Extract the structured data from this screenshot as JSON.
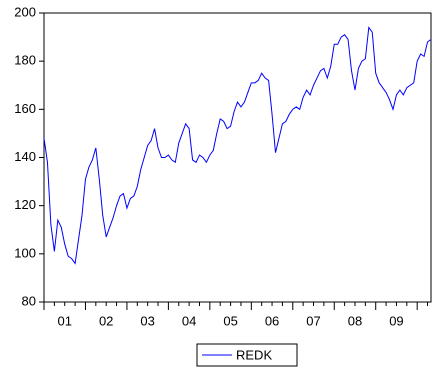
{
  "chart_data": {
    "type": "line",
    "categories": [
      null,
      null,
      null,
      null,
      null,
      null,
      "01",
      null,
      null,
      null,
      null,
      null,
      null,
      null,
      null,
      null,
      null,
      null,
      "02",
      null,
      null,
      null,
      null,
      null,
      null,
      null,
      null,
      null,
      null,
      null,
      "03",
      null,
      null,
      null,
      null,
      null,
      null,
      null,
      null,
      null,
      null,
      null,
      "04",
      null,
      null,
      null,
      null,
      null,
      null,
      null,
      null,
      null,
      null,
      null,
      "05",
      null,
      null,
      null,
      null,
      null,
      null,
      null,
      null,
      null,
      null,
      null,
      "06",
      null,
      null,
      null,
      null,
      null,
      null,
      null,
      null,
      null,
      null,
      null,
      "07",
      null,
      null,
      null,
      null,
      null,
      null,
      null,
      null,
      null,
      null,
      null,
      "08",
      null,
      null,
      null,
      null,
      null,
      null,
      null,
      null,
      null,
      null,
      null,
      "09",
      null,
      null,
      null,
      null,
      null,
      null,
      null,
      null,
      null,
      null
    ],
    "series": [
      {
        "name": "REDK",
        "color": "#0000ff",
        "values": [
          148,
          138,
          112,
          101,
          114,
          111,
          104,
          99,
          98,
          96,
          106,
          116,
          131,
          136,
          139,
          144,
          131,
          116,
          107,
          111,
          115,
          120,
          124,
          125,
          119,
          123,
          124,
          128,
          135,
          140,
          145,
          147,
          152,
          144,
          140,
          140,
          141,
          139,
          138,
          146,
          150,
          154,
          152,
          139,
          138,
          141,
          140,
          138,
          141,
          143,
          150,
          156,
          155,
          152,
          153,
          159,
          163,
          161,
          163,
          167,
          171,
          171,
          172,
          175,
          173,
          172,
          158,
          142,
          148,
          154,
          155,
          158,
          160,
          161,
          160,
          165,
          168,
          166,
          170,
          173,
          176,
          177,
          173,
          178,
          187,
          187,
          190,
          191,
          189,
          176,
          168,
          177,
          180,
          181,
          194,
          192,
          175,
          171,
          169,
          167,
          164,
          160,
          166,
          168,
          166,
          169,
          170,
          171,
          180,
          183,
          182,
          188,
          189
        ]
      }
    ],
    "ylim": [
      80,
      200
    ],
    "yticks": [
      80,
      100,
      120,
      140,
      160,
      180,
      200
    ]
  }
}
